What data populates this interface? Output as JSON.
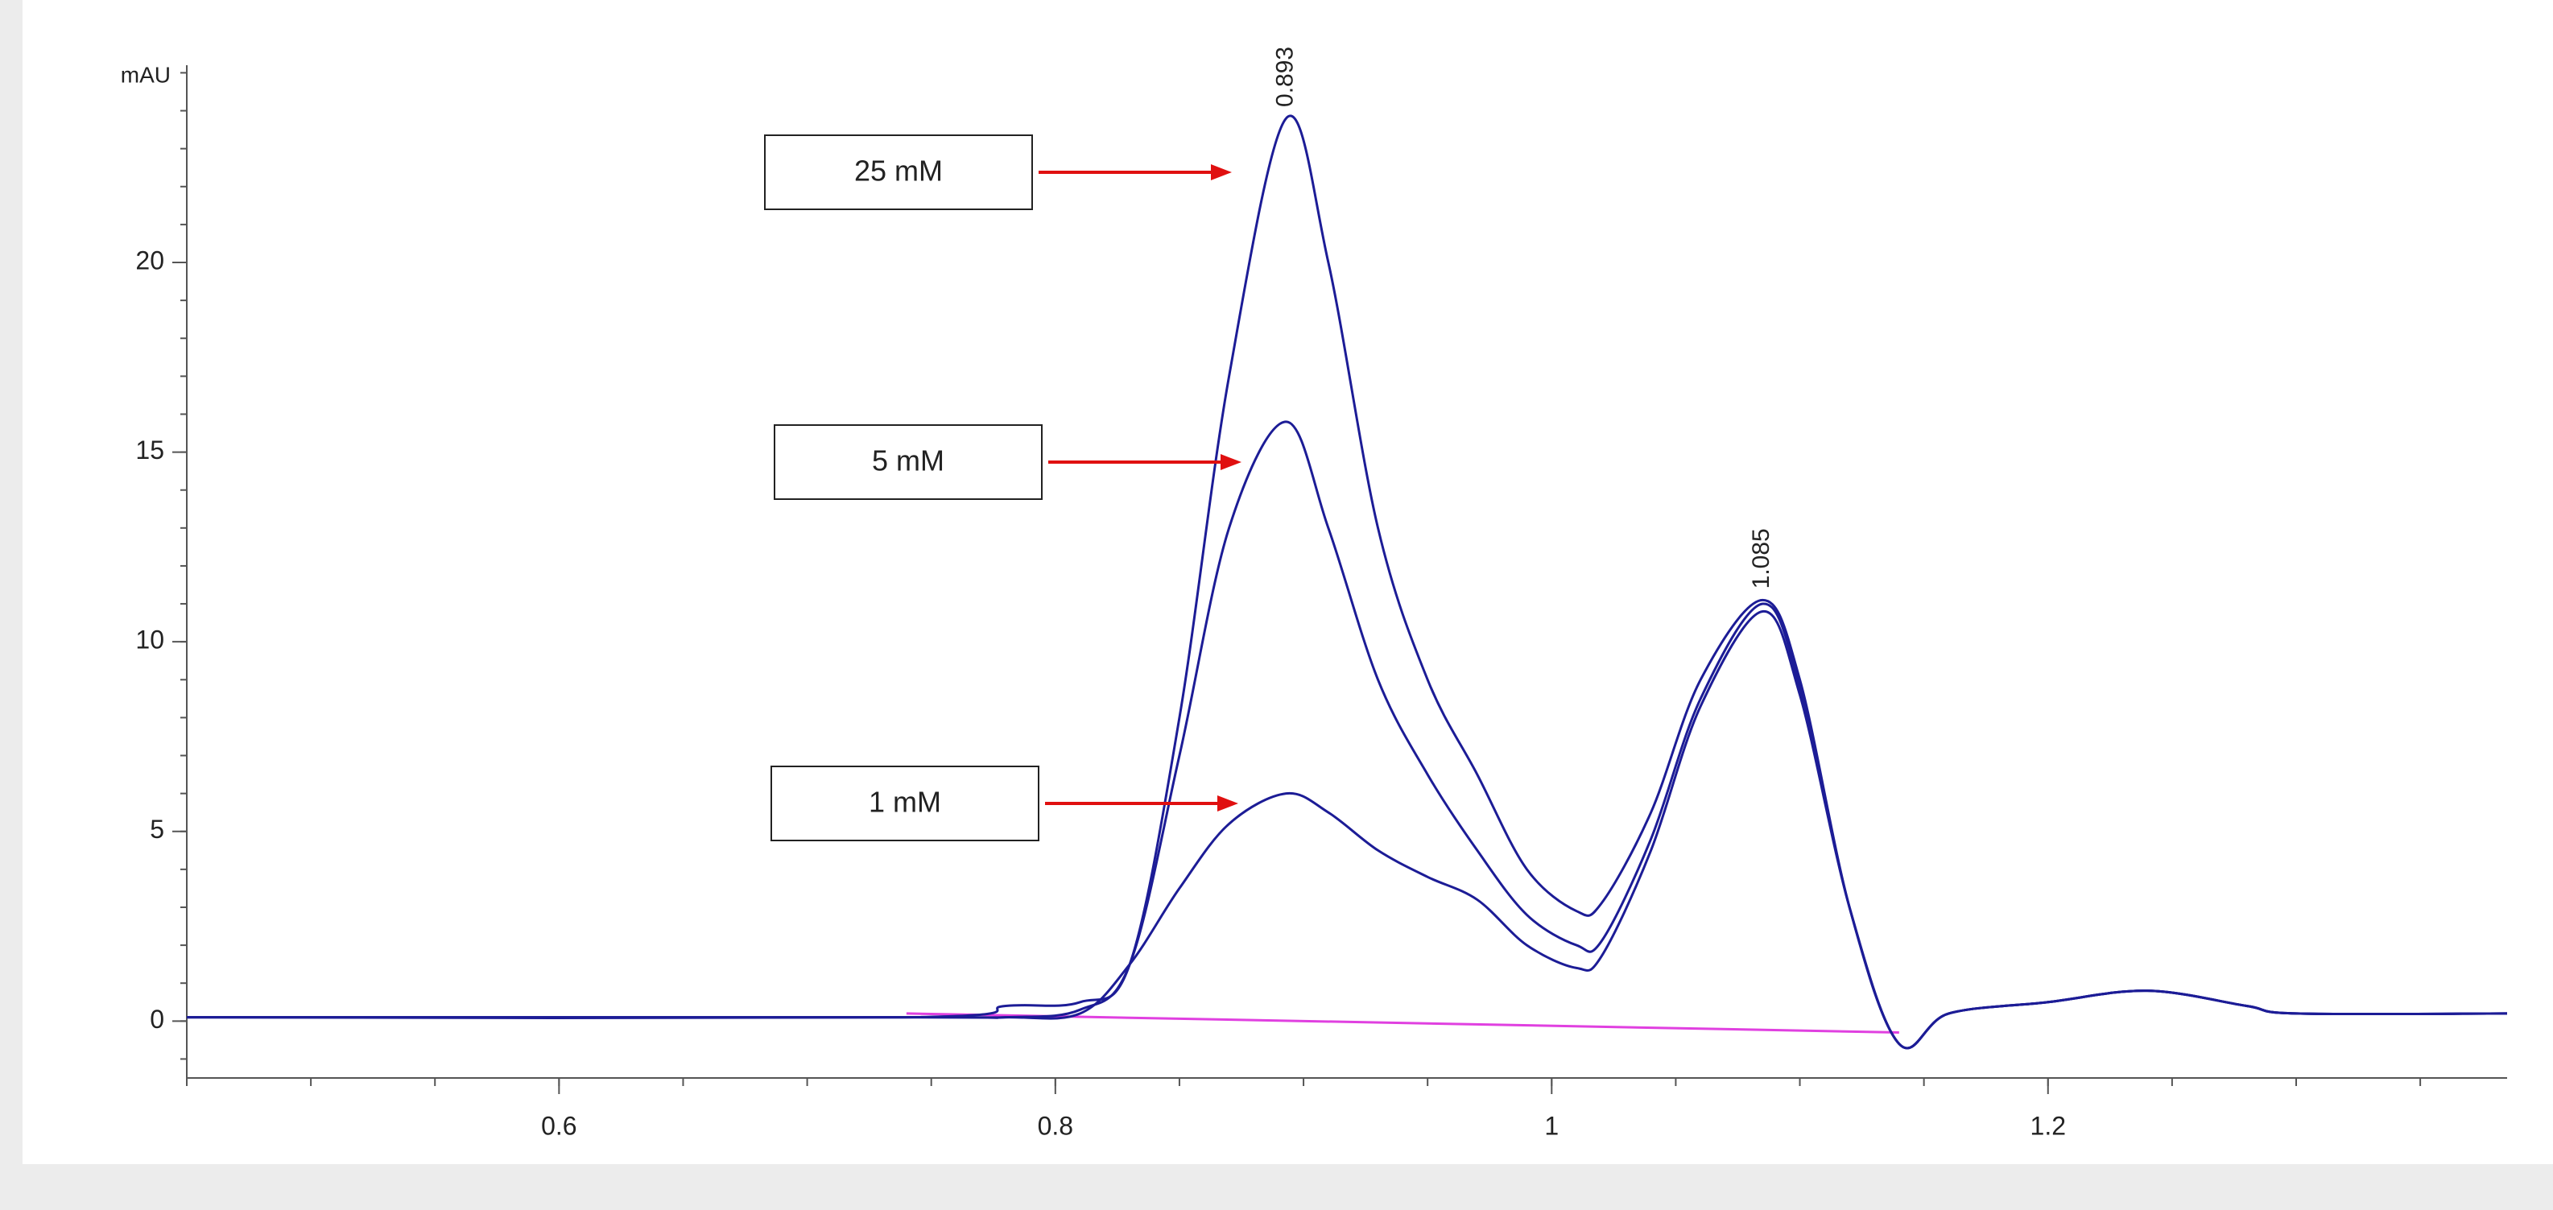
{
  "chart_data": {
    "type": "line",
    "y_label": "mAU",
    "x": [
      0.45,
      0.74,
      0.78,
      0.81,
      0.83,
      0.85,
      0.87,
      0.893,
      0.91,
      0.93,
      0.95,
      0.97,
      0.99,
      1.01,
      1.02,
      1.04,
      1.06,
      1.085,
      1.1,
      1.12,
      1.14,
      1.16,
      1.2,
      1.24,
      1.28,
      1.3,
      1.385
    ],
    "series": [
      {
        "name": "25 mM",
        "color": "#1c1c96",
        "values": [
          0.1,
          0.1,
          0.4,
          0.5,
          1.5,
          8,
          17,
          23.8,
          20,
          13,
          9,
          6.5,
          4,
          2.9,
          3.1,
          5.5,
          9,
          11.1,
          9,
          3,
          -0.6,
          0.2,
          0.5,
          0.8,
          0.4,
          0.2,
          0.2
        ]
      },
      {
        "name": "5 mM",
        "color": "#1c1c96",
        "values": [
          0.1,
          0.1,
          0.1,
          0.3,
          1.5,
          7,
          13,
          15.8,
          13,
          9,
          6.5,
          4.5,
          2.8,
          2.0,
          2.1,
          4.8,
          8.5,
          11.0,
          8.8,
          3,
          -0.6,
          0.2,
          0.5,
          0.8,
          0.4,
          0.2,
          0.2
        ]
      },
      {
        "name": "1 mM",
        "color": "#1c1c96",
        "values": [
          0.1,
          0.1,
          0.1,
          0.2,
          1.5,
          3.5,
          5.2,
          6.0,
          5.5,
          4.5,
          3.8,
          3.2,
          2.0,
          1.4,
          1.7,
          4.5,
          8.3,
          10.8,
          8.6,
          3,
          -0.6,
          0.2,
          0.5,
          0.8,
          0.4,
          0.2,
          0.2
        ]
      }
    ],
    "baseline": {
      "color": "#e040e0",
      "x": [
        0.74,
        1.14
      ],
      "values": [
        0.2,
        -0.3
      ]
    },
    "peak_labels": [
      {
        "text": "0.893",
        "x": 0.893,
        "y": 23.8
      },
      {
        "text": "1.085",
        "x": 1.085,
        "y": 11.1
      }
    ],
    "xlim": [
      0.45,
      1.385
    ],
    "xticks": [
      0.6,
      0.8,
      1,
      1.2
    ],
    "x_minor_step": 0.05,
    "ylim": [
      -1.5,
      25.2
    ],
    "yticks": [
      0,
      5,
      10,
      15,
      20
    ],
    "y_minor_step": 1,
    "grid": false
  }
}
